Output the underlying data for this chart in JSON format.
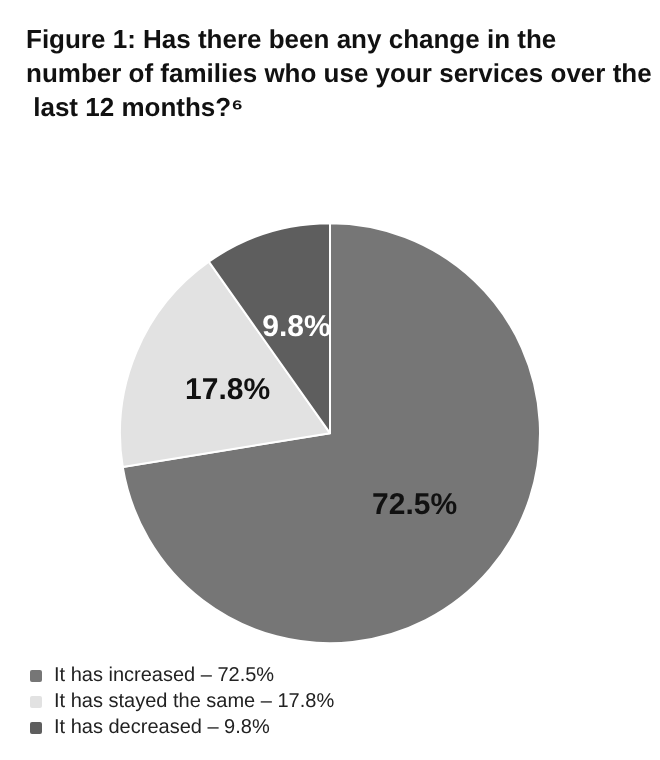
{
  "chart_data": {
    "type": "pie",
    "title": "Figure 1: Has there been any change in the number of families who use your services over the last 12 months?⁶",
    "categories": [
      "It has increased – 72.5%",
      "It has stayed the same – 17.8%",
      "It has decreased – 9.8%"
    ],
    "values": [
      72.5,
      17.8,
      9.8
    ],
    "colors": [
      "#767676",
      "#e2e2e2",
      "#5e5e5e"
    ],
    "value_labels": [
      "72.5%",
      "17.8%",
      "9.8%"
    ],
    "legend": "bottom left"
  }
}
